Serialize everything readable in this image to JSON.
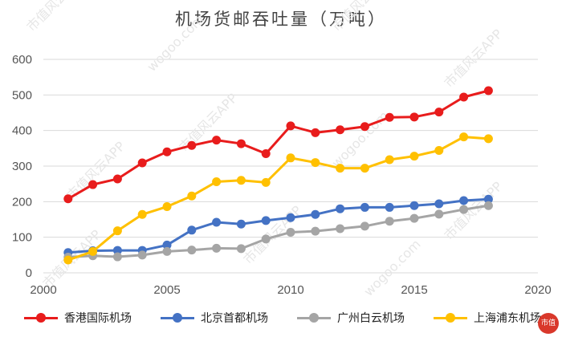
{
  "chart_data": {
    "type": "line",
    "title": "机场货邮吞吐量（万吨）",
    "xlabel": "",
    "ylabel": "",
    "xlim": [
      2000,
      2020
    ],
    "ylim": [
      0,
      600
    ],
    "x_ticks": [
      2000,
      2005,
      2010,
      2015,
      2020
    ],
    "y_ticks": [
      0,
      100,
      200,
      300,
      400,
      500,
      600
    ],
    "grid": "horizontal",
    "legend_position": "bottom",
    "x": [
      2001,
      2002,
      2003,
      2004,
      2005,
      2006,
      2007,
      2008,
      2009,
      2010,
      2011,
      2012,
      2013,
      2014,
      2015,
      2016,
      2017,
      2018
    ],
    "series": [
      {
        "name": "香港国际机场",
        "color": "#e81c1c",
        "values": [
          208,
          248,
          264,
          309,
          340,
          358,
          373,
          363,
          335,
          413,
          394,
          402,
          411,
          437,
          438,
          452,
          494,
          512
        ]
      },
      {
        "name": "北京首都机场",
        "color": "#4472c4",
        "values": [
          57,
          62,
          63,
          63,
          78,
          120,
          142,
          137,
          147,
          155,
          164,
          180,
          184,
          184,
          189,
          194,
          203,
          207
        ]
      },
      {
        "name": "广州白云机场",
        "color": "#a5a5a5",
        "values": [
          44,
          48,
          45,
          50,
          60,
          64,
          69,
          68,
          95,
          114,
          117,
          124,
          131,
          145,
          153,
          165,
          178,
          189
        ]
      },
      {
        "name": "上海浦东机场",
        "color": "#ffc000",
        "values": [
          36,
          60,
          118,
          164,
          186,
          216,
          256,
          260,
          254,
          323,
          310,
          294,
          294,
          318,
          328,
          344,
          382,
          377
        ]
      }
    ]
  },
  "watermark": {
    "text": "市值风云APP",
    "site": "wogoo.com",
    "badge": "市值"
  }
}
